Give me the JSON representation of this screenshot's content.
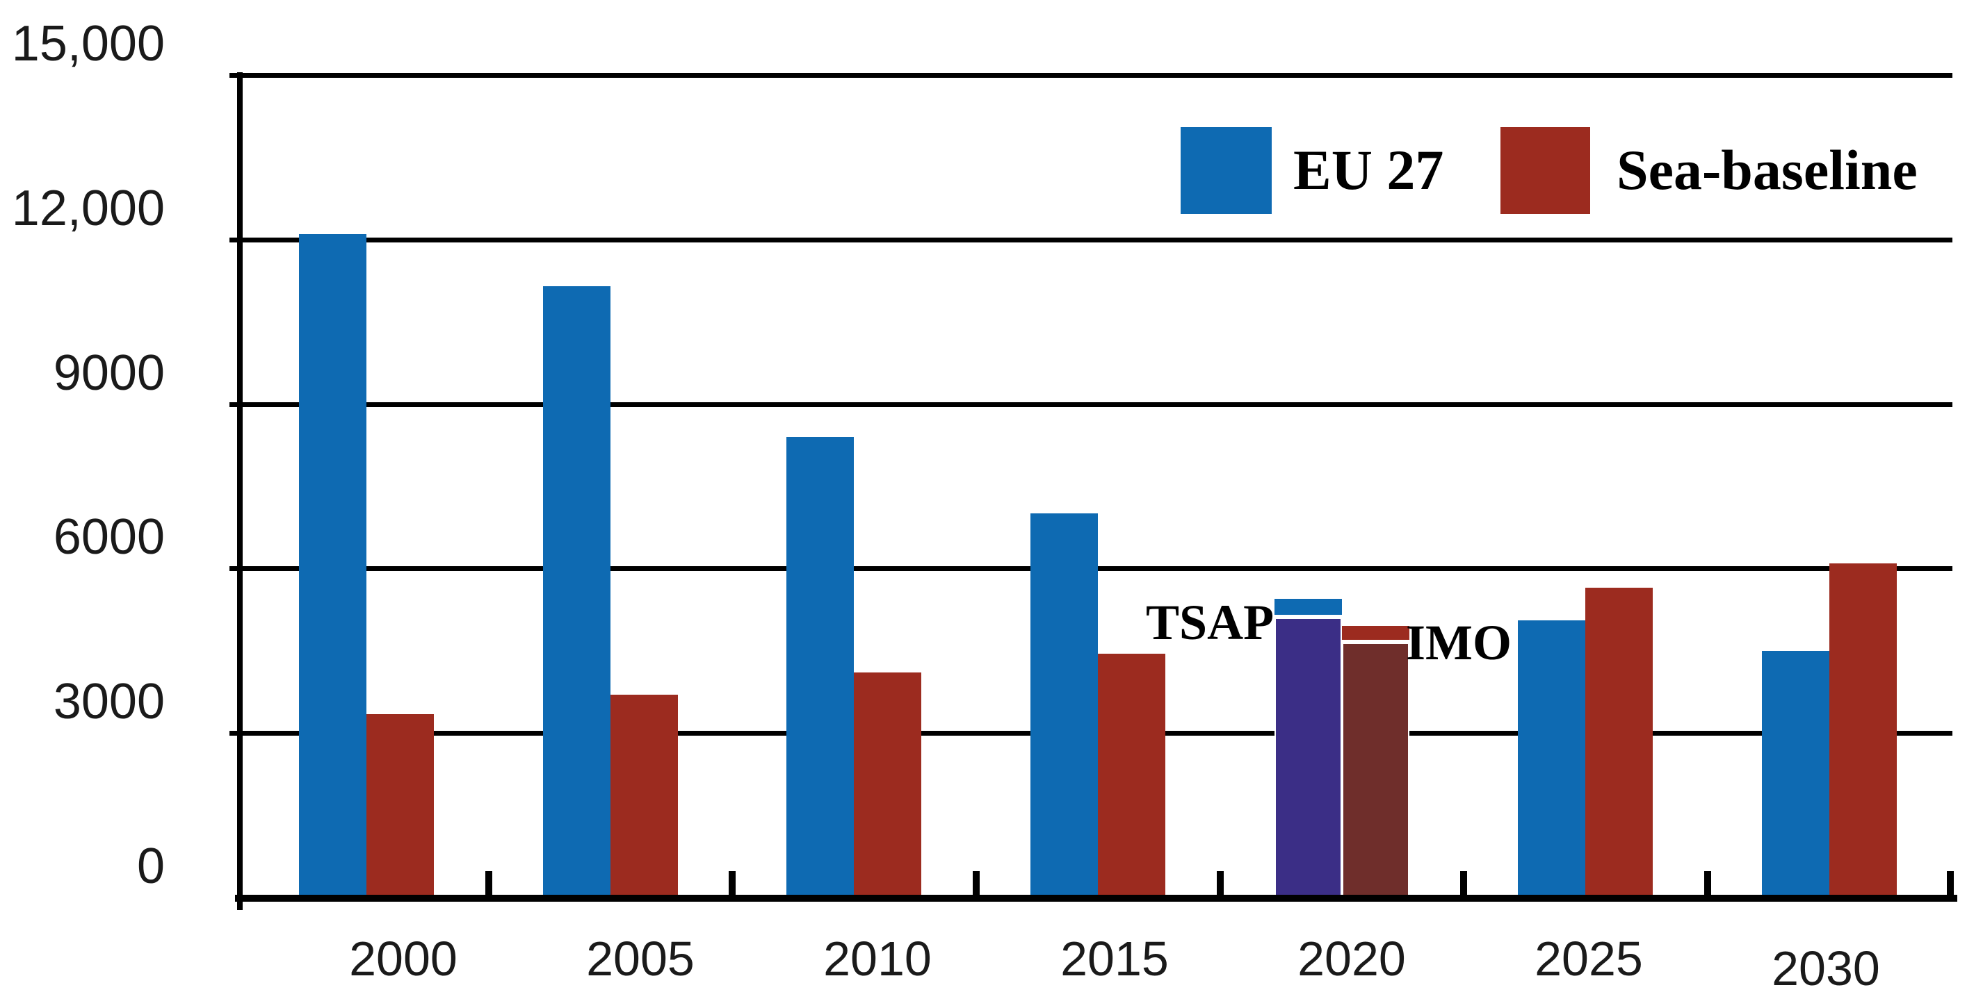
{
  "chart_data": {
    "type": "bar",
    "title": "",
    "xlabel": "",
    "ylabel": "",
    "categories": [
      "2000",
      "2005",
      "2010",
      "2015",
      "2020",
      "2025",
      "2030"
    ],
    "series": [
      {
        "name": "EU 27",
        "color": "#0e6ab2",
        "values": [
          12100,
          11150,
          8400,
          7000,
          5450,
          5050,
          4500
        ]
      },
      {
        "name": "Sea-baseline",
        "color": "#9c2b1f",
        "values": [
          3350,
          3700,
          4100,
          4450,
          4950,
          5650,
          6100
        ]
      }
    ],
    "overlays": [
      {
        "name": "TSAP",
        "color": "#3b2e86",
        "category": "2020",
        "series": "EU 27",
        "value": 5150
      },
      {
        "name": "IMO",
        "color": "#6f2e2b",
        "category": "2020",
        "series": "Sea-baseline",
        "value": 4700
      }
    ],
    "annotations": [
      {
        "text": "TSAP"
      },
      {
        "text": "IMO"
      }
    ],
    "legend": [
      {
        "label": "EU 27"
      },
      {
        "label": "Sea-baseline"
      }
    ],
    "y_axis": {
      "min": 0,
      "max": 15000,
      "tick_values": [
        15000,
        12000,
        9000,
        6000,
        3000,
        0
      ],
      "tick_labels": [
        "15,000",
        "12,000",
        "9000",
        "6000",
        "3000",
        "0"
      ]
    },
    "grid": "horizontal",
    "legend_position": "top-right"
  }
}
